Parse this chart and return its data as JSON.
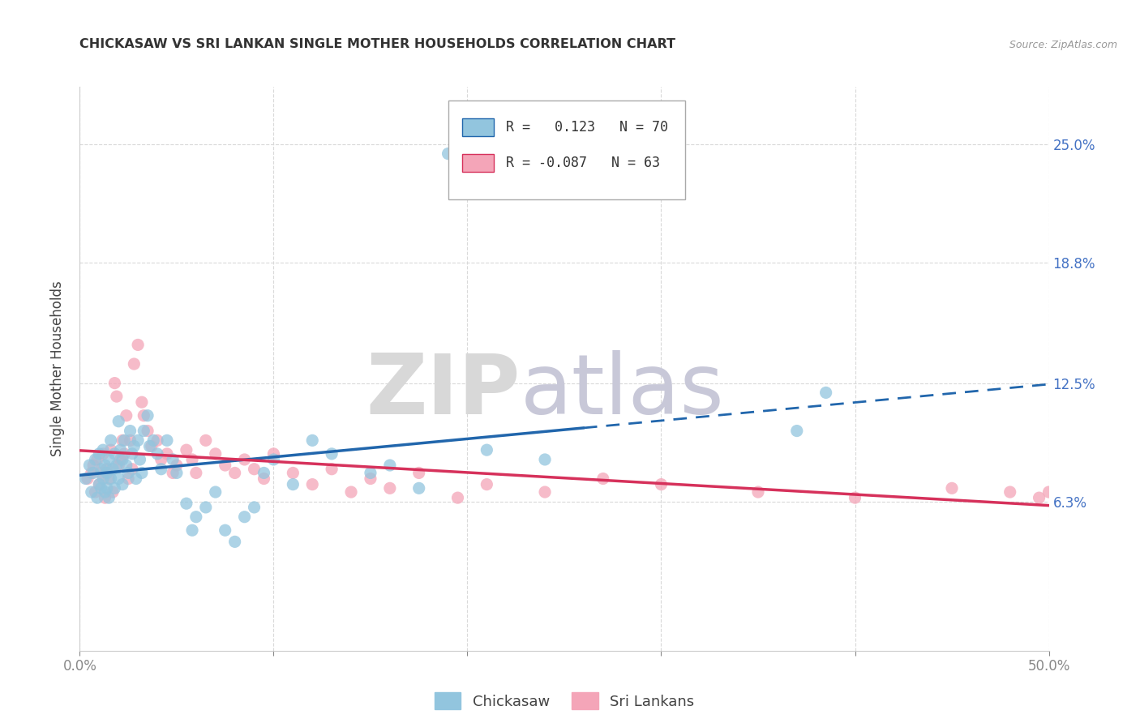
{
  "title": "CHICKASAW VS SRI LANKAN SINGLE MOTHER HOUSEHOLDS CORRELATION CHART",
  "source": "Source: ZipAtlas.com",
  "ylabel": "Single Mother Households",
  "xlim": [
    0.0,
    0.5
  ],
  "ylim": [
    -0.015,
    0.28
  ],
  "yticks": [
    0.063,
    0.125,
    0.188,
    0.25
  ],
  "ytick_labels": [
    "6.3%",
    "12.5%",
    "18.8%",
    "25.0%"
  ],
  "xticks": [
    0.0,
    0.1,
    0.2,
    0.3,
    0.4,
    0.5
  ],
  "xtick_labels": [
    "0.0%",
    "",
    "",
    "",
    "",
    "50.0%"
  ],
  "blue_color": "#92c5de",
  "pink_color": "#f4a5b8",
  "line_blue": "#2166ac",
  "line_pink": "#d6315b",
  "background_color": "#ffffff",
  "grid_color": "#d9d9d9",
  "watermark_zip_color": "#d8d8d8",
  "watermark_atlas_color": "#c8c8d8",
  "right_label_color": "#4472c4",
  "blue_line_split": 0.26,
  "chickasaw_x": [
    0.003,
    0.005,
    0.006,
    0.007,
    0.008,
    0.009,
    0.01,
    0.01,
    0.011,
    0.011,
    0.012,
    0.012,
    0.013,
    0.013,
    0.014,
    0.014,
    0.015,
    0.015,
    0.016,
    0.016,
    0.017,
    0.018,
    0.018,
    0.019,
    0.02,
    0.02,
    0.021,
    0.022,
    0.022,
    0.023,
    0.024,
    0.025,
    0.026,
    0.027,
    0.028,
    0.029,
    0.03,
    0.031,
    0.032,
    0.033,
    0.035,
    0.036,
    0.038,
    0.04,
    0.042,
    0.045,
    0.048,
    0.05,
    0.055,
    0.058,
    0.06,
    0.065,
    0.07,
    0.075,
    0.08,
    0.085,
    0.09,
    0.095,
    0.1,
    0.11,
    0.12,
    0.13,
    0.15,
    0.16,
    0.175,
    0.19,
    0.21,
    0.24,
    0.37,
    0.385
  ],
  "chickasaw_y": [
    0.075,
    0.082,
    0.068,
    0.078,
    0.085,
    0.065,
    0.072,
    0.088,
    0.07,
    0.08,
    0.075,
    0.09,
    0.068,
    0.082,
    0.078,
    0.07,
    0.085,
    0.065,
    0.075,
    0.095,
    0.08,
    0.088,
    0.07,
    0.082,
    0.105,
    0.075,
    0.09,
    0.085,
    0.072,
    0.095,
    0.082,
    0.078,
    0.1,
    0.088,
    0.092,
    0.075,
    0.095,
    0.085,
    0.078,
    0.1,
    0.108,
    0.092,
    0.095,
    0.088,
    0.08,
    0.095,
    0.085,
    0.078,
    0.062,
    0.048,
    0.055,
    0.06,
    0.068,
    0.048,
    0.042,
    0.055,
    0.06,
    0.078,
    0.085,
    0.072,
    0.095,
    0.088,
    0.078,
    0.082,
    0.07,
    0.245,
    0.09,
    0.085,
    0.1,
    0.12
  ],
  "srilankan_x": [
    0.004,
    0.006,
    0.007,
    0.008,
    0.009,
    0.01,
    0.011,
    0.012,
    0.013,
    0.014,
    0.015,
    0.016,
    0.017,
    0.018,
    0.019,
    0.02,
    0.021,
    0.022,
    0.023,
    0.024,
    0.025,
    0.026,
    0.027,
    0.028,
    0.03,
    0.032,
    0.033,
    0.035,
    0.037,
    0.04,
    0.042,
    0.045,
    0.048,
    0.05,
    0.055,
    0.058,
    0.06,
    0.065,
    0.07,
    0.075,
    0.08,
    0.085,
    0.09,
    0.095,
    0.1,
    0.11,
    0.12,
    0.13,
    0.14,
    0.15,
    0.16,
    0.175,
    0.195,
    0.21,
    0.24,
    0.27,
    0.3,
    0.35,
    0.4,
    0.45,
    0.48,
    0.495,
    0.5
  ],
  "srilankan_y": [
    0.075,
    0.078,
    0.082,
    0.068,
    0.085,
    0.072,
    0.078,
    0.088,
    0.065,
    0.08,
    0.075,
    0.09,
    0.068,
    0.125,
    0.118,
    0.082,
    0.085,
    0.095,
    0.088,
    0.108,
    0.075,
    0.095,
    0.08,
    0.135,
    0.145,
    0.115,
    0.108,
    0.1,
    0.092,
    0.095,
    0.085,
    0.088,
    0.078,
    0.082,
    0.09,
    0.085,
    0.078,
    0.095,
    0.088,
    0.082,
    0.078,
    0.085,
    0.08,
    0.075,
    0.088,
    0.078,
    0.072,
    0.08,
    0.068,
    0.075,
    0.07,
    0.078,
    0.065,
    0.072,
    0.068,
    0.075,
    0.072,
    0.068,
    0.065,
    0.07,
    0.068,
    0.065,
    0.068
  ]
}
